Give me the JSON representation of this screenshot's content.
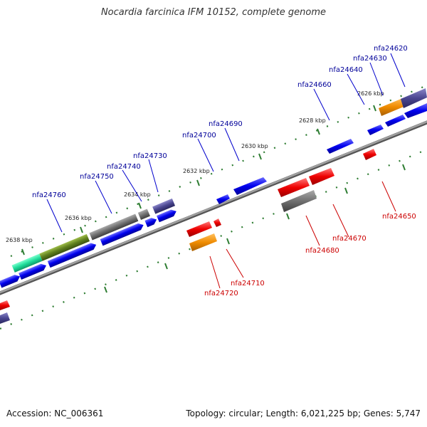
{
  "title": "Nocardia farcinica IFM 10152, complete genome",
  "footer": {
    "accession": "Accession: NC_006361",
    "summary": "Topology: circular; Length: 6,021,225 bp; Genes: 5,747"
  },
  "colors": {
    "forward_gene": "#0000ee",
    "reverse_gene": "#ee0000",
    "forward_label": "#000099",
    "reverse_label": "#cc0000",
    "tick_dash": "#2e7d32",
    "backbone": "#888888"
  },
  "scale_labels": [
    "2626 kbp",
    "2628 kbp",
    "2630 kbp",
    "2632 kbp",
    "2634 kbp",
    "2636 kbp",
    "2638 kbp"
  ],
  "forward_labels": [
    "nfa24620",
    "nfa24630",
    "nfa24640",
    "nfa24660",
    "nfa24690",
    "nfa24700",
    "nfa24730",
    "nfa24740",
    "nfa24750",
    "nfa24760"
  ],
  "reverse_labels": [
    "nfa24650",
    "nfa24670",
    "nfa24680",
    "nfa24710",
    "nfa24720"
  ]
}
